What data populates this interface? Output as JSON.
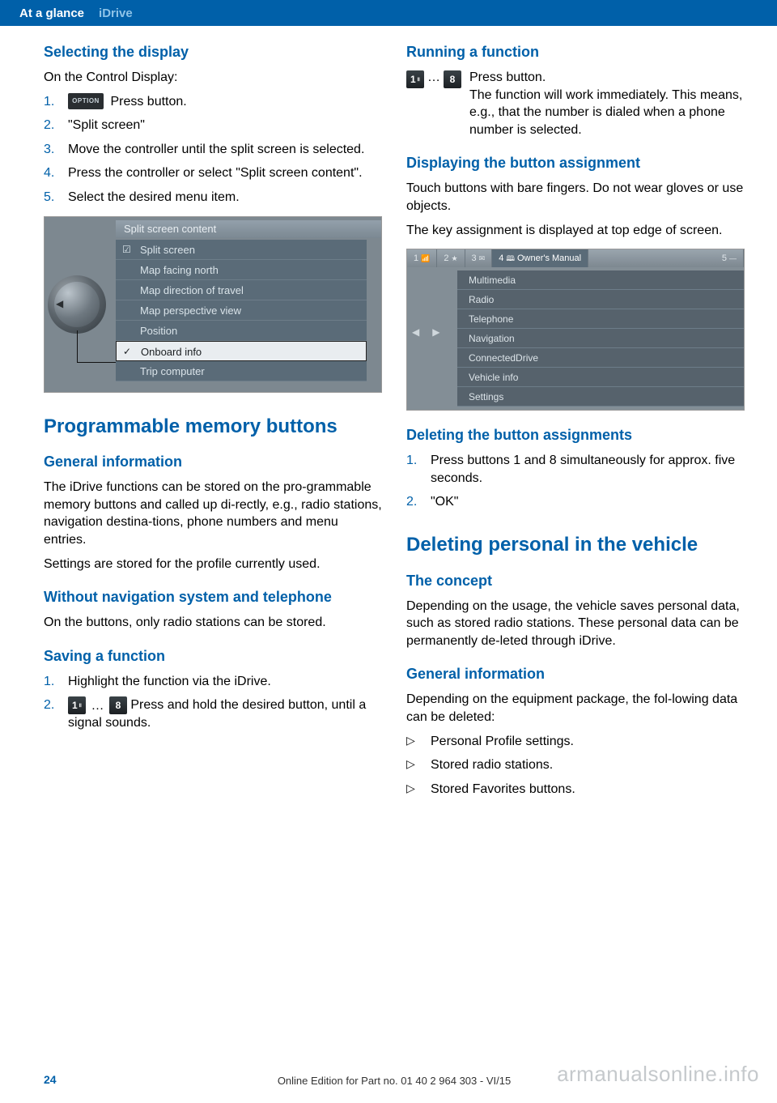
{
  "header": {
    "section": "At a glance",
    "subsection": "iDrive"
  },
  "left": {
    "h_selecting": "Selecting the display",
    "selecting_intro": "On the Control Display:",
    "selecting_steps": {
      "s1_btn": "OPTION",
      "s1_txt": "  Press button.",
      "s2": "\"Split screen\"",
      "s3": "Move the controller until the split screen is selected.",
      "s4": "Press the controller or select \"Split screen content\".",
      "s5": "Select the desired menu item."
    },
    "ss1": {
      "title": "Split screen content",
      "items": [
        "Split screen",
        "Map facing north",
        "Map direction of travel",
        "Map perspective view",
        "Position",
        "Onboard info",
        "Trip computer"
      ],
      "checked": [
        0,
        5
      ]
    },
    "h_pmb": "Programmable memory buttons",
    "h_general": "General information",
    "general_p1": "The iDrive functions can be stored on the pro‐grammable memory buttons and called up di‐rectly, e.g., radio stations, navigation destina‐tions, phone numbers and menu entries.",
    "general_p2": "Settings are stored for the profile currently used.",
    "h_without": "Without navigation system and telephone",
    "without_p": "On the buttons, only radio stations can be stored.",
    "h_saving": "Saving a function",
    "saving_s1": "Highlight the function via the iDrive.",
    "saving_s2_txt": "  Press and hold the desired button, until a signal sounds."
  },
  "right": {
    "h_running": "Running a function",
    "running_txt1": "  Press button.",
    "running_txt2": "The function will work immediately. This means, e.g., that the number is dialed when a phone number is selected.",
    "h_display_assign": "Displaying the button assignment",
    "display_p1": "Touch buttons with bare fingers. Do not wear gloves or use objects.",
    "display_p2": "The key assignment is displayed at top edge of screen.",
    "ss2": {
      "tabs": [
        "1",
        "2",
        "3",
        "4",
        "Owner's Manual",
        "5"
      ],
      "menu": [
        "Multimedia",
        "Radio",
        "Telephone",
        "Navigation",
        "ConnectedDrive",
        "Vehicle info",
        "Settings"
      ]
    },
    "h_delete_assign": "Deleting the button assignments",
    "delete_s1": "Press buttons 1 and 8 simultaneously for approx. five seconds.",
    "delete_s2": "\"OK\"",
    "h_delete_personal": "Deleting personal in the vehicle",
    "h_concept": "The concept",
    "concept_p": "Depending on the usage, the vehicle saves personal data, such as stored radio stations. These personal data can be permanently de‐leted through iDrive.",
    "h_general2": "General information",
    "general2_p": "Depending on the equipment package, the fol‐lowing data can be deleted:",
    "general2_items": [
      "Personal Profile settings.",
      "Stored radio stations.",
      "Stored Favorites buttons."
    ]
  },
  "footer": {
    "page": "24",
    "edition": "Online Edition for Part no. 01 40 2 964 303 - VI/15",
    "watermark": "armanualsonline.info"
  }
}
